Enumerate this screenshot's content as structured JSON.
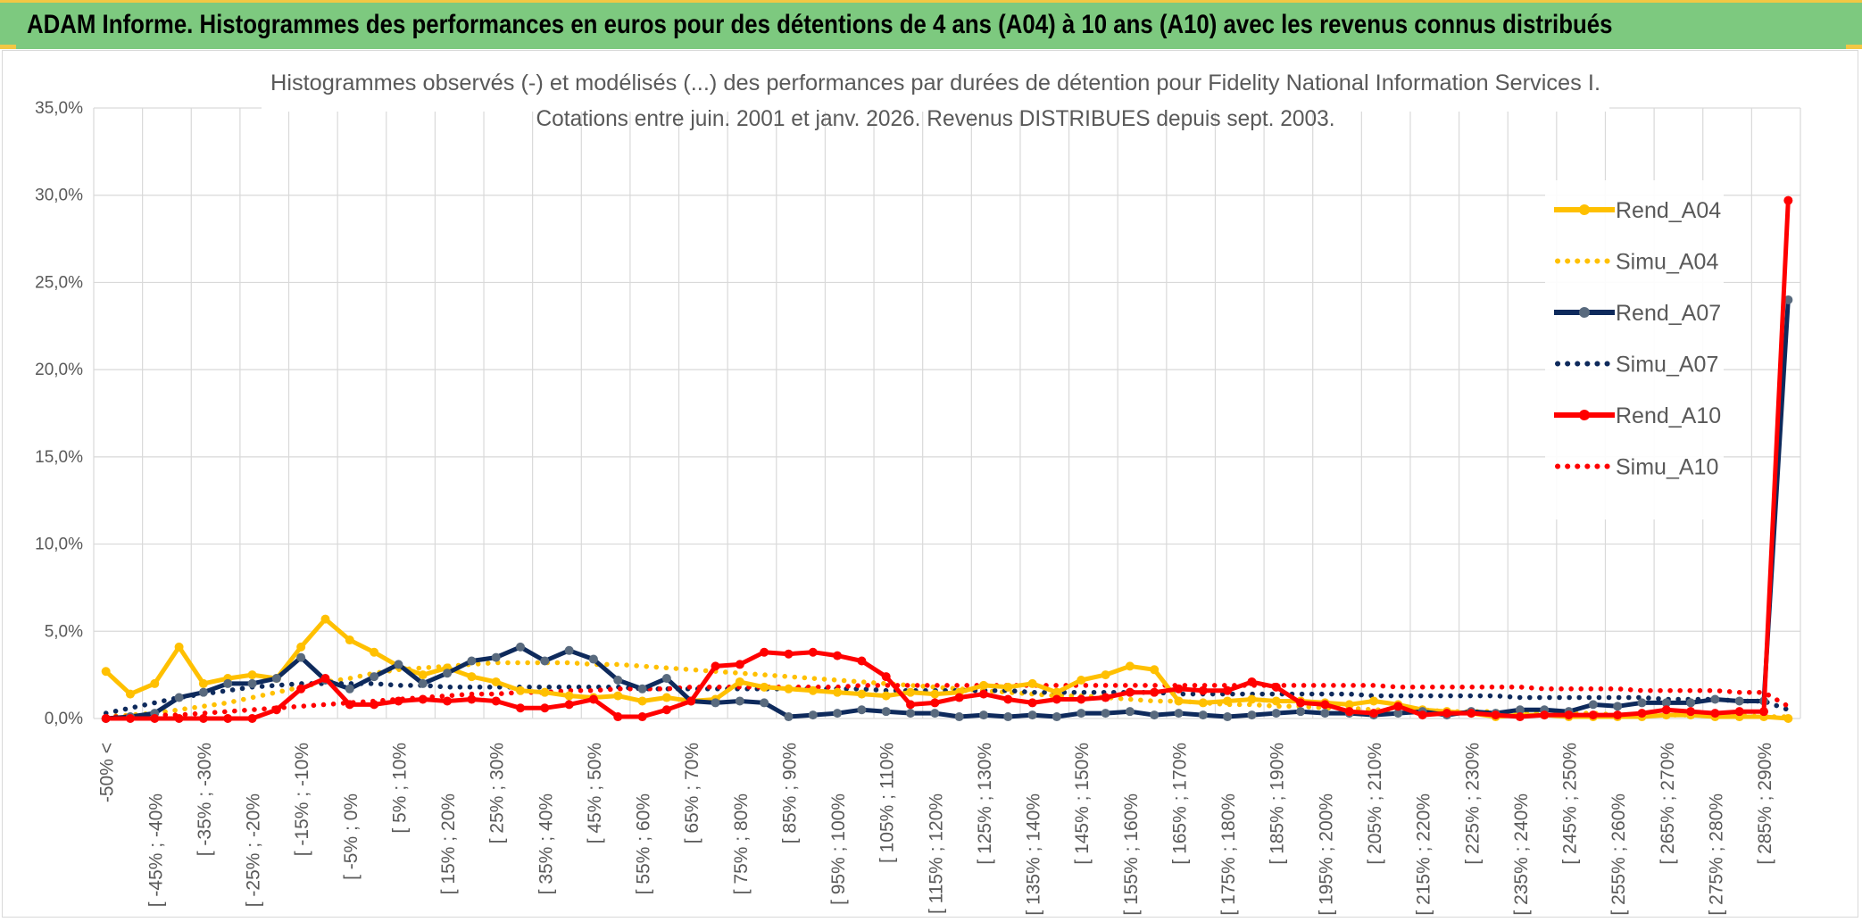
{
  "header": {
    "title": "ADAM Informe. Histogrammes des performances en euros pour des détentions de 4 ans (A04) à 10 ans (A10) avec les revenus connus distribués"
  },
  "colors": {
    "header_bg": "#7dc97f",
    "a04": "#ffc000",
    "a07": "#0e2a5c",
    "a07_marker": "#596a7e",
    "a10": "#ff0000",
    "grid": "#d9d9d9",
    "axis_text": "#595959"
  },
  "chart_data": {
    "type": "line",
    "title": "Histogrammes observés (-) et modélisés (...) des performances par durées de détention pour Fidelity National Information Services I.",
    "subtitle": "Cotations entre juin. 2001 et janv. 2026. Revenus DISTRIBUES depuis sept. 2003.",
    "y_ticks": [
      "0,0%",
      "5,0%",
      "10,0%",
      "15,0%",
      "20,0%",
      "25,0%",
      "30,0%",
      "35,0%"
    ],
    "ylim": [
      0,
      35
    ],
    "x_tick_labels": [
      "-50% <",
      "[ -45% ; -40%",
      "[ -35% ; -30%",
      "[ -25% ; -20%",
      "[ -15% ; -10%",
      "[ -5% ; 0%",
      "[ 5% ; 10%",
      "[ 15% ; 20%",
      "[ 25% ; 30%",
      "[ 35% ; 40%",
      "[ 45% ; 50%",
      "[ 55% ; 60%",
      "[ 65% ; 70%",
      "[ 75% ; 80%",
      "[ 85% ; 90%",
      "[ 95% ; 100%",
      "[ 105% ; 110%",
      "[ 115% ; 120%",
      "[ 125% ; 130%",
      "[ 135% ; 140%",
      "[ 145% ; 150%",
      "[ 155% ; 160%",
      "[ 165% ; 170%",
      "[ 175% ; 180%",
      "[ 185% ; 190%",
      "[ 195% ; 200%",
      "[ 205% ; 210%",
      "[ 215% ; 220%",
      "[ 225% ; 230%",
      "[ 235% ; 240%",
      "[ 245% ; 250%",
      "[ 255% ; 260%",
      "[ 265% ; 270%",
      "[ 275% ; 280%",
      "[ 285% ; 290%"
    ],
    "n_points": 70,
    "legend_position": "right",
    "series": [
      {
        "name": "Rend_A04",
        "style": "solid",
        "color": "#ffc000",
        "values": [
          2.7,
          1.4,
          2.0,
          4.1,
          2.0,
          2.3,
          2.5,
          2.3,
          4.1,
          5.7,
          4.5,
          3.8,
          3.0,
          2.5,
          2.9,
          2.4,
          2.1,
          1.6,
          1.5,
          1.3,
          1.2,
          1.3,
          1.0,
          1.2,
          1.0,
          1.1,
          2.1,
          1.8,
          1.7,
          1.6,
          1.5,
          1.4,
          1.3,
          1.5,
          1.4,
          1.5,
          1.9,
          1.8,
          2.0,
          1.5,
          2.2,
          2.5,
          3.0,
          2.8,
          1.0,
          0.9,
          1.0,
          1.1,
          1.0,
          1.0,
          0.9,
          0.8,
          1.0,
          0.8,
          0.5,
          0.4,
          0.3,
          0.1,
          0.2,
          0.2,
          0.1,
          0.1,
          0.1,
          0.1,
          0.2,
          0.2,
          0.1,
          0.1,
          0.1,
          0.0
        ]
      },
      {
        "name": "Simu_A04",
        "style": "dotted",
        "color": "#ffc000",
        "values": [
          0.1,
          0.2,
          0.3,
          0.5,
          0.7,
          0.9,
          1.2,
          1.5,
          1.8,
          2.1,
          2.3,
          2.6,
          2.8,
          2.9,
          3.0,
          3.1,
          3.2,
          3.2,
          3.2,
          3.2,
          3.1,
          3.1,
          3.0,
          2.9,
          2.8,
          2.7,
          2.6,
          2.5,
          2.4,
          2.3,
          2.2,
          2.1,
          2.0,
          1.9,
          1.8,
          1.7,
          1.6,
          1.5,
          1.4,
          1.3,
          1.3,
          1.2,
          1.1,
          1.0,
          1.0,
          0.9,
          0.8,
          0.8,
          0.7,
          0.7,
          0.6,
          0.6,
          0.5,
          0.5,
          0.5,
          0.4,
          0.4,
          0.4,
          0.3,
          0.3,
          0.3,
          0.3,
          0.2,
          0.2,
          0.2,
          0.2,
          0.2,
          0.2,
          0.1,
          0.1
        ]
      },
      {
        "name": "Rend_A07",
        "style": "solid",
        "color": "#0e2a5c",
        "values": [
          0.0,
          0.1,
          0.3,
          1.2,
          1.5,
          2.0,
          2.0,
          2.3,
          3.5,
          2.2,
          1.7,
          2.4,
          3.1,
          2.0,
          2.6,
          3.3,
          3.5,
          4.1,
          3.3,
          3.9,
          3.4,
          2.2,
          1.7,
          2.3,
          1.0,
          0.9,
          1.0,
          0.9,
          0.1,
          0.2,
          0.3,
          0.5,
          0.4,
          0.3,
          0.3,
          0.1,
          0.2,
          0.1,
          0.2,
          0.1,
          0.3,
          0.3,
          0.4,
          0.2,
          0.3,
          0.2,
          0.1,
          0.2,
          0.3,
          0.4,
          0.3,
          0.3,
          0.2,
          0.3,
          0.4,
          0.2,
          0.4,
          0.3,
          0.5,
          0.5,
          0.4,
          0.8,
          0.7,
          0.9,
          0.9,
          0.9,
          1.1,
          1.0,
          1.0,
          24.0
        ]
      },
      {
        "name": "Simu_A07",
        "style": "dotted",
        "color": "#0e2a5c",
        "values": [
          0.3,
          0.6,
          0.9,
          1.2,
          1.4,
          1.6,
          1.8,
          1.9,
          2.0,
          2.0,
          2.0,
          2.0,
          1.9,
          1.9,
          1.8,
          1.8,
          1.8,
          1.8,
          1.8,
          1.8,
          1.8,
          1.8,
          1.7,
          1.7,
          1.7,
          1.7,
          1.7,
          1.7,
          1.7,
          1.7,
          1.7,
          1.7,
          1.6,
          1.6,
          1.6,
          1.6,
          1.6,
          1.6,
          1.5,
          1.5,
          1.5,
          1.5,
          1.5,
          1.5,
          1.4,
          1.4,
          1.4,
          1.4,
          1.4,
          1.4,
          1.4,
          1.4,
          1.3,
          1.3,
          1.3,
          1.3,
          1.3,
          1.3,
          1.2,
          1.2,
          1.2,
          1.2,
          1.2,
          1.2,
          1.1,
          1.1,
          1.1,
          1.0,
          1.0,
          0.5
        ]
      },
      {
        "name": "Rend_A10",
        "style": "solid",
        "color": "#ff0000",
        "values": [
          0.0,
          0.0,
          0.0,
          0.0,
          0.0,
          0.0,
          0.0,
          0.5,
          1.7,
          2.3,
          0.8,
          0.8,
          1.0,
          1.1,
          1.0,
          1.1,
          1.0,
          0.6,
          0.6,
          0.8,
          1.1,
          0.1,
          0.1,
          0.5,
          1.0,
          3.0,
          3.1,
          3.8,
          3.7,
          3.8,
          3.6,
          3.3,
          2.4,
          0.8,
          0.9,
          1.2,
          1.4,
          1.1,
          0.9,
          1.1,
          1.1,
          1.2,
          1.5,
          1.5,
          1.7,
          1.6,
          1.6,
          2.1,
          1.8,
          0.9,
          0.8,
          0.4,
          0.3,
          0.7,
          0.2,
          0.3,
          0.3,
          0.2,
          0.1,
          0.2,
          0.2,
          0.2,
          0.2,
          0.3,
          0.5,
          0.4,
          0.3,
          0.4,
          0.4,
          29.7
        ]
      },
      {
        "name": "Simu_A10",
        "style": "dotted",
        "color": "#ff0000",
        "values": [
          0.1,
          0.1,
          0.2,
          0.2,
          0.3,
          0.4,
          0.5,
          0.6,
          0.7,
          0.8,
          0.9,
          1.0,
          1.1,
          1.2,
          1.3,
          1.4,
          1.4,
          1.5,
          1.5,
          1.6,
          1.6,
          1.7,
          1.7,
          1.7,
          1.8,
          1.8,
          1.8,
          1.8,
          1.8,
          1.8,
          1.8,
          1.9,
          1.9,
          1.9,
          1.9,
          1.9,
          1.9,
          1.9,
          1.9,
          1.9,
          1.9,
          1.9,
          1.9,
          1.9,
          1.9,
          1.9,
          1.9,
          1.9,
          1.9,
          1.9,
          1.9,
          1.9,
          1.9,
          1.8,
          1.8,
          1.8,
          1.8,
          1.8,
          1.8,
          1.7,
          1.7,
          1.7,
          1.7,
          1.6,
          1.6,
          1.6,
          1.6,
          1.5,
          1.5,
          0.7
        ]
      }
    ]
  }
}
